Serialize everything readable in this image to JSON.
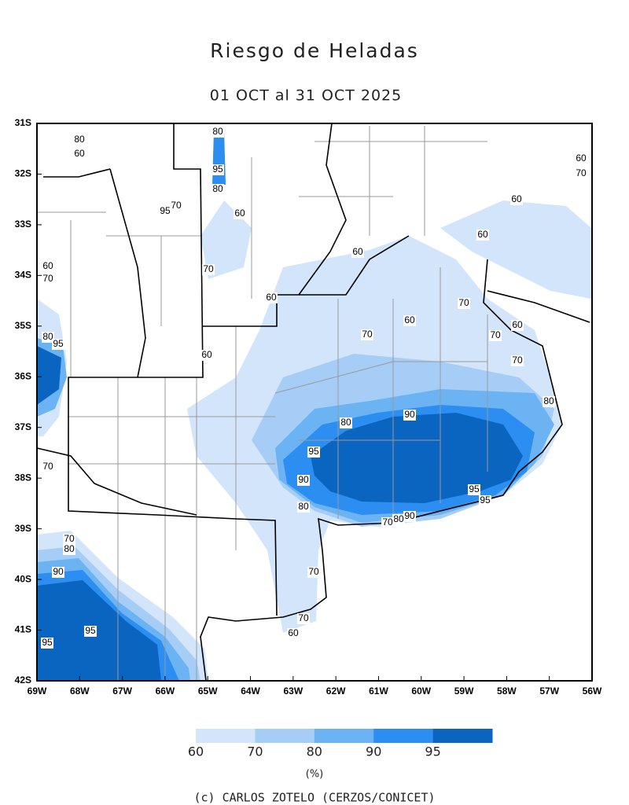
{
  "title": "Riesgo de Heladas",
  "subtitle": "01 OCT al 31 OCT 2025",
  "lat_labels": [
    "31S",
    "32S",
    "33S",
    "34S",
    "35S",
    "36S",
    "37S",
    "38S",
    "39S",
    "40S",
    "41S",
    "42S"
  ],
  "lon_labels": [
    "69W",
    "68W",
    "67W",
    "66W",
    "65W",
    "64W",
    "63W",
    "62W",
    "61W",
    "60W",
    "59W",
    "58W",
    "57W",
    "56W"
  ],
  "legend": {
    "labels": [
      "60",
      "70",
      "80",
      "90",
      "95"
    ],
    "colors": [
      "#d2e5fb",
      "#a6cdf6",
      "#6cb3f3",
      "#2b8ef0",
      "#0a65c0"
    ],
    "unit": "(%)"
  },
  "contour_labels": [
    80,
    60,
    80,
    95,
    80,
    95,
    70,
    60,
    60,
    70,
    60,
    60,
    60,
    60,
    70,
    70,
    60,
    70,
    60,
    60,
    70,
    70,
    80,
    95,
    60,
    70,
    80,
    90,
    80,
    95,
    90,
    95,
    95,
    80,
    90,
    80,
    70,
    70,
    70,
    80,
    90,
    70,
    70,
    60,
    95,
    95
  ],
  "credit": "(c) CARLOS ZOTELO (CERZOS/CONICET)"
}
